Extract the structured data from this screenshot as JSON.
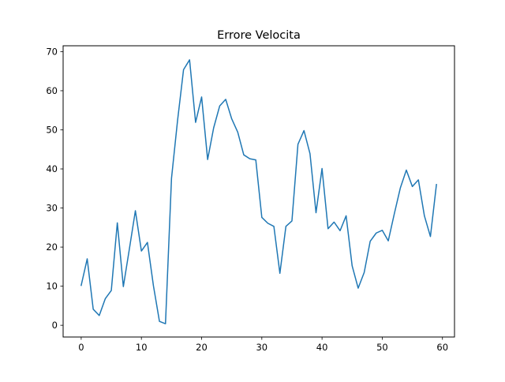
{
  "chart_data": {
    "type": "line",
    "title": "Errore Velocita",
    "xlabel": "",
    "ylabel": "",
    "xlim": [
      -3,
      62
    ],
    "ylim": [
      -3,
      71.5
    ],
    "x_ticks": [
      0,
      10,
      20,
      30,
      40,
      50,
      60
    ],
    "y_ticks": [
      0,
      10,
      20,
      30,
      40,
      50,
      60,
      70
    ],
    "grid": false,
    "series_color": "#1f77b4",
    "series": [
      {
        "x": [
          0,
          1,
          2,
          3,
          4,
          5,
          6,
          7,
          8,
          9,
          10,
          11,
          12,
          13,
          14,
          15,
          16,
          17,
          18,
          19,
          20,
          21,
          22,
          23,
          24,
          25,
          26,
          27,
          28,
          29,
          30,
          31,
          32,
          33,
          34,
          35,
          36,
          37,
          38,
          39,
          40,
          41,
          42,
          43,
          44,
          45,
          46,
          47,
          48,
          49,
          50,
          51,
          52,
          53,
          54,
          55,
          56,
          57,
          58,
          59
        ],
        "values": [
          10.2,
          17.0,
          4.1,
          2.5,
          6.8,
          8.9,
          26.2,
          9.9,
          19.5,
          29.3,
          19.0,
          21.2,
          10.1,
          1.0,
          0.4,
          37.6,
          52.3,
          65.4,
          67.9,
          51.9,
          58.4,
          42.4,
          50.5,
          56.1,
          57.8,
          52.8,
          49.4,
          43.6,
          42.6,
          42.3,
          27.6,
          26.1,
          25.3,
          13.3,
          25.3,
          26.7,
          46.3,
          49.8,
          43.9,
          28.8,
          40.1,
          24.7,
          26.4,
          24.2,
          28.0,
          15.2,
          9.5,
          13.5,
          21.5,
          23.6,
          24.3,
          21.6,
          28.5,
          35.1,
          39.7,
          35.5,
          37.2,
          28.0,
          22.7,
          36.0
        ]
      }
    ]
  }
}
